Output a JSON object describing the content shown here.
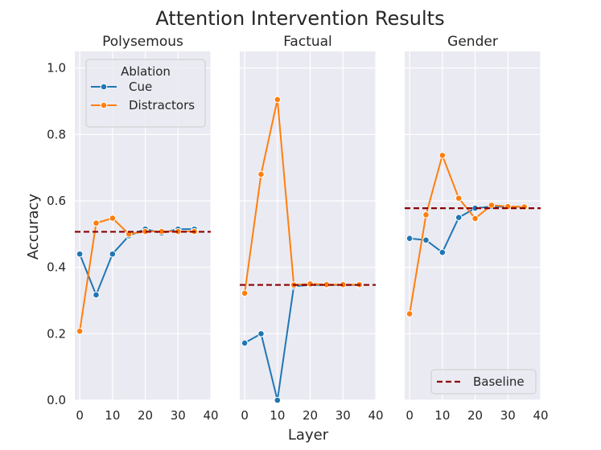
{
  "figure": {
    "title": "Attention Intervention Results",
    "xlabel": "Layer",
    "ylabel": "Accuracy"
  },
  "colors": {
    "cue": "#1f77b4",
    "distractors": "#ff7f0e",
    "baseline": "#8b0000",
    "panel_bg": "#eaeaf2",
    "grid": "#ffffff"
  },
  "legend_ablation": {
    "title": "Ablation",
    "entries": [
      "Cue",
      "Distractors"
    ]
  },
  "legend_baseline": {
    "label": "Baseline"
  },
  "chart_data": [
    {
      "type": "line",
      "title": "Polysemous",
      "x": [
        0,
        5,
        10,
        15,
        20,
        25,
        30,
        35
      ],
      "xlim": [
        -1.5,
        40
      ],
      "ylim": [
        0,
        1.05
      ],
      "xticks": [
        0,
        10,
        20,
        30,
        40
      ],
      "yticks": [
        0.0,
        0.2,
        0.4,
        0.6,
        0.8,
        1.0
      ],
      "grid": true,
      "legend": "top-right",
      "series": [
        {
          "name": "Cue",
          "values": [
            0.44,
            0.317,
            0.44,
            0.495,
            0.515,
            0.503,
            0.515,
            0.515
          ]
        },
        {
          "name": "Distractors",
          "values": [
            0.208,
            0.533,
            0.548,
            0.5,
            0.508,
            0.508,
            0.508,
            0.508
          ]
        }
      ],
      "baseline": 0.507
    },
    {
      "type": "line",
      "title": "Factual",
      "x": [
        0,
        5,
        10,
        15,
        20,
        25,
        30,
        35
      ],
      "xlim": [
        -1.5,
        40
      ],
      "ylim": [
        0,
        1.05
      ],
      "xticks": [
        0,
        10,
        20,
        30,
        40
      ],
      "grid": true,
      "series": [
        {
          "name": "Cue",
          "values": [
            0.172,
            0.2,
            0.0,
            0.343,
            0.347,
            0.347,
            0.347,
            0.347
          ]
        },
        {
          "name": "Distractors",
          "values": [
            0.322,
            0.68,
            0.905,
            0.347,
            0.35,
            0.348,
            0.348,
            0.348
          ]
        }
      ],
      "baseline": 0.347
    },
    {
      "type": "line",
      "title": "Gender",
      "x": [
        0,
        5,
        10,
        15,
        20,
        25,
        30,
        35
      ],
      "xlim": [
        -1.5,
        40
      ],
      "ylim": [
        0,
        1.05
      ],
      "xticks": [
        0,
        10,
        20,
        30,
        40
      ],
      "grid": true,
      "legend": "bottom-right",
      "series": [
        {
          "name": "Cue",
          "values": [
            0.487,
            0.482,
            0.445,
            0.55,
            0.578,
            0.583,
            0.582,
            0.582
          ]
        },
        {
          "name": "Distractors",
          "values": [
            0.26,
            0.558,
            0.737,
            0.608,
            0.547,
            0.587,
            0.583,
            0.582
          ]
        }
      ],
      "baseline": 0.578
    }
  ]
}
